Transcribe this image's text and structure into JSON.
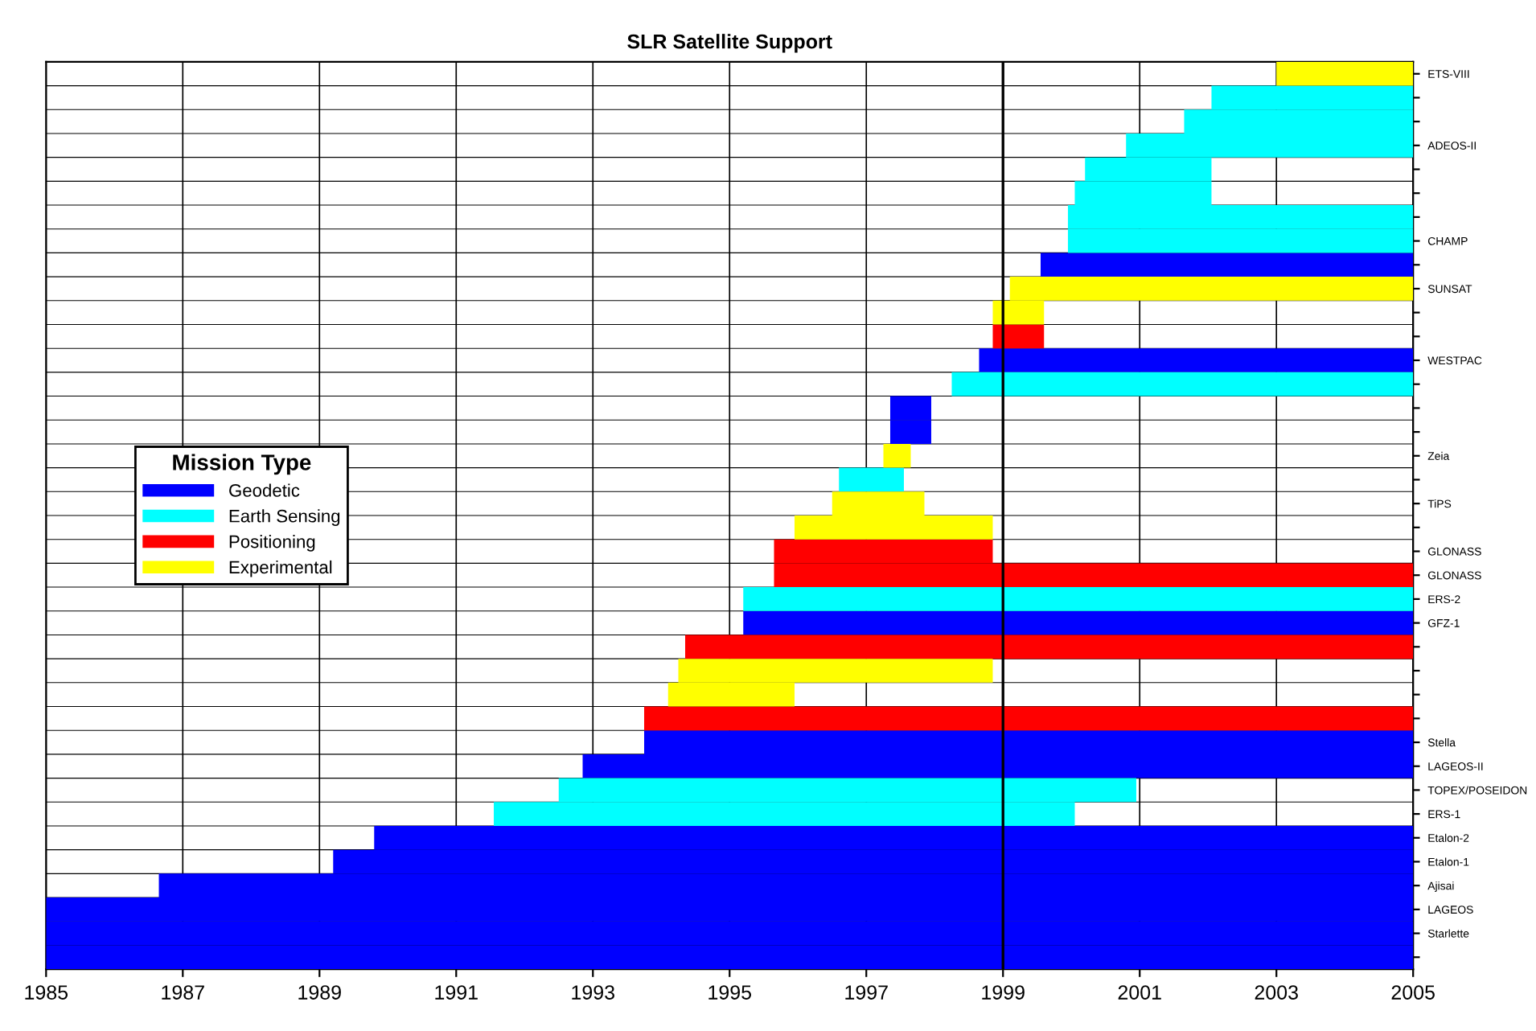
{
  "chart_data": {
    "type": "bar",
    "orientation": "horizontal",
    "stacked": false,
    "title": "SLR Satellite Support",
    "categories": [
      "ETS-VIII",
      null,
      null,
      "ADEOS-II",
      null,
      null,
      null,
      "CHAMP",
      null,
      "SUNSAT",
      null,
      null,
      "WESTPAC",
      null,
      null,
      null,
      "Zeia",
      null,
      "TiPS",
      null,
      "GLONASS",
      "GLONASS",
      "ERS-2",
      "GFZ-1",
      null,
      null,
      null,
      null,
      "Stella",
      "LAGEOS-II",
      "TOPEX/POSEIDON",
      "ERS-1",
      "Etalon-2",
      "Etalon-1",
      "Ajisai",
      "LAGEOS",
      "Starlette",
      null
    ],
    "series": [
      {
        "name": "Geodetic",
        "color": "#0000ff",
        "base": [
          null,
          null,
          null,
          null,
          null,
          null,
          null,
          null,
          1999.55,
          null,
          null,
          null,
          1998.65,
          null,
          1997.35,
          1997.35,
          null,
          null,
          null,
          null,
          null,
          null,
          null,
          1995.2,
          null,
          null,
          null,
          null,
          1993.75,
          1992.85,
          null,
          null,
          1989.8,
          1989.2,
          1986.65,
          1985,
          1985,
          1985
        ],
        "values": [
          null,
          null,
          null,
          null,
          null,
          null,
          null,
          null,
          5.45,
          null,
          null,
          null,
          6.35,
          null,
          0.6,
          0.6,
          null,
          null,
          null,
          null,
          null,
          null,
          null,
          9.8,
          null,
          null,
          null,
          null,
          11.25,
          12.15,
          null,
          null,
          15.2,
          15.8,
          18.35,
          20,
          20,
          20
        ]
      },
      {
        "name": "Earth Sensing",
        "color": "#00ffff",
        "base": [
          null,
          2002.05,
          2001.65,
          2000.8,
          2000.2,
          2000.05,
          1999.95,
          1999.95,
          null,
          null,
          null,
          null,
          null,
          1998.25,
          null,
          null,
          null,
          1996.6,
          null,
          null,
          null,
          null,
          1995.2,
          null,
          null,
          null,
          null,
          null,
          null,
          null,
          1992.5,
          1991.55,
          null,
          null,
          null,
          null,
          null,
          null
        ],
        "values": [
          null,
          2.95,
          3.35,
          4.2,
          1.85,
          2.0,
          5.05,
          5.05,
          null,
          null,
          null,
          null,
          null,
          6.75,
          null,
          null,
          null,
          0.95,
          null,
          null,
          null,
          null,
          9.8,
          null,
          null,
          null,
          null,
          null,
          null,
          null,
          8.45,
          8.5,
          null,
          null,
          null,
          null,
          null,
          null
        ]
      },
      {
        "name": "Positioning",
        "color": "#ff0000",
        "base": [
          null,
          null,
          null,
          null,
          null,
          null,
          null,
          null,
          null,
          null,
          null,
          1998.85,
          null,
          null,
          null,
          null,
          null,
          null,
          null,
          null,
          1995.65,
          1995.65,
          null,
          null,
          1994.35,
          null,
          null,
          1993.75,
          null,
          null,
          null,
          null,
          null,
          null,
          null,
          null,
          null,
          null
        ],
        "values": [
          null,
          null,
          null,
          null,
          null,
          null,
          null,
          null,
          null,
          null,
          null,
          0.75,
          null,
          null,
          null,
          null,
          null,
          null,
          null,
          null,
          3.2,
          9.35,
          null,
          null,
          10.65,
          null,
          null,
          11.25,
          null,
          null,
          null,
          null,
          null,
          null,
          null,
          null,
          null,
          null
        ]
      },
      {
        "name": "Experimental",
        "color": "#ffff00",
        "base": [
          2003.0,
          null,
          null,
          null,
          null,
          null,
          null,
          null,
          null,
          1999.1,
          1998.85,
          null,
          null,
          null,
          null,
          null,
          1997.25,
          null,
          1996.5,
          1995.95,
          null,
          null,
          null,
          null,
          null,
          1994.25,
          1994.1,
          null,
          null,
          null,
          null,
          null,
          null,
          null,
          null,
          null,
          null,
          null
        ],
        "values": [
          2.0,
          null,
          null,
          null,
          null,
          null,
          null,
          null,
          null,
          5.9,
          0.75,
          null,
          null,
          null,
          null,
          null,
          0.4,
          null,
          1.35,
          2.9,
          null,
          null,
          null,
          null,
          null,
          4.6,
          1.85,
          null,
          null,
          null,
          null,
          null,
          null,
          null,
          null,
          null,
          null,
          null
        ]
      }
    ],
    "xlim": [
      1985,
      2005
    ],
    "xticks": [
      1985,
      1987,
      1989,
      1991,
      1993,
      1995,
      1997,
      1999,
      2001,
      2003,
      2005
    ],
    "ref_lines": [
      {
        "axis": "x",
        "value": 1999,
        "label": null,
        "color": "#000000"
      }
    ],
    "grid": true,
    "legend": "left",
    "legend_title": "Mission Type"
  }
}
